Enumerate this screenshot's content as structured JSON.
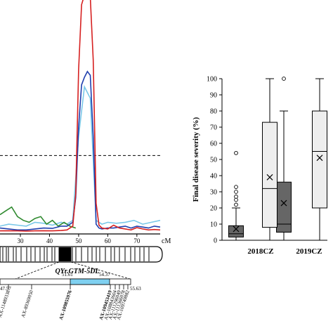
{
  "chart_data": [
    {
      "type": "line",
      "panel": "qtl-lod-profile",
      "x_tick_labels": [
        "30",
        "40",
        "50",
        "60",
        "70"
      ],
      "x_unit": "cM",
      "xlim": [
        23,
        78
      ],
      "ylim": [
        0,
        12
      ],
      "threshold": 4.0,
      "grid": false,
      "series": [
        {
          "color": "#d62020",
          "x": [
            23,
            26,
            29,
            32,
            35,
            38,
            41,
            44,
            46,
            48,
            49,
            50,
            51,
            52,
            53,
            54,
            55,
            56,
            57,
            58,
            60,
            62,
            64,
            66,
            68,
            70,
            72,
            74,
            76,
            78
          ],
          "y": [
            0.05,
            0.06,
            0.05,
            0.04,
            0.05,
            0.06,
            0.05,
            0.07,
            0.1,
            0.3,
            2,
            8.5,
            11.9,
            12.4,
            12.5,
            12.3,
            9,
            1.5,
            0.35,
            0.2,
            0.15,
            0.35,
            0.2,
            0.15,
            0.1,
            0.22,
            0.15,
            0.1,
            0.12,
            0.1
          ]
        },
        {
          "color": "#1f3fae",
          "x": [
            23,
            26,
            29,
            32,
            35,
            38,
            41,
            44,
            46,
            48,
            49,
            50,
            51,
            52,
            53,
            54,
            55,
            56,
            57,
            58,
            60,
            62,
            64,
            66,
            68,
            70,
            72,
            74,
            76,
            78
          ],
          "y": [
            0.2,
            0.15,
            0.1,
            0.1,
            0.15,
            0.2,
            0.18,
            0.3,
            0.3,
            0.5,
            1.8,
            5.5,
            7.7,
            8.1,
            8.4,
            8.2,
            5,
            0.4,
            0.2,
            0.15,
            0.2,
            0.2,
            0.25,
            0.3,
            0.2,
            0.3,
            0.25,
            0.2,
            0.3,
            0.25
          ]
        },
        {
          "color": "#2f8a2f",
          "x": [
            23,
            25,
            27,
            29,
            31,
            33,
            35,
            37,
            39,
            41,
            43,
            45,
            47,
            49
          ],
          "y": [
            0.9,
            1.1,
            1.3,
            0.8,
            0.6,
            0.5,
            0.7,
            0.8,
            0.4,
            0.6,
            0.3,
            0.5,
            0.3,
            0.2
          ]
        },
        {
          "color": "#7ac8e8",
          "x": [
            23,
            26,
            29,
            32,
            35,
            38,
            41,
            44,
            46,
            48,
            50,
            52,
            54,
            56,
            58,
            60,
            63,
            66,
            69,
            72,
            75,
            78
          ],
          "y": [
            0.3,
            0.4,
            0.35,
            0.3,
            0.5,
            0.45,
            0.35,
            0.5,
            0.4,
            0.6,
            5,
            7.6,
            7,
            0.6,
            0.4,
            0.5,
            0.45,
            0.5,
            0.6,
            0.4,
            0.5,
            0.6
          ]
        }
      ]
    },
    {
      "type": "box",
      "panel": "disease-severity",
      "ylabel": "Final disease severity (%)",
      "ylim": [
        0,
        100
      ],
      "yticks": [
        0,
        10,
        20,
        30,
        40,
        50,
        60,
        70,
        80,
        90,
        100
      ],
      "categories": [
        "2018CZ",
        "2019CZ"
      ],
      "series": [
        {
          "fill": "#666666",
          "boxes": [
            {
              "min": 0,
              "q1": 2,
              "median": 4,
              "q3": 9,
              "max": 20,
              "mean": 7,
              "outliers": [
                22,
                25,
                27,
                30,
                33,
                54
              ]
            },
            {
              "min": 0,
              "q1": 5,
              "median": 10,
              "q3": 36,
              "max": 80,
              "mean": 23,
              "outliers": [
                100
              ]
            }
          ]
        },
        {
          "fill": "#eeeeee",
          "boxes": [
            {
              "min": 0,
              "q1": 8,
              "median": 32,
              "q3": 73,
              "max": 100,
              "mean": 39,
              "outliers": []
            },
            {
              "min": 0,
              "q1": 20,
              "median": 55,
              "q3": 80,
              "max": 100,
              "mean": 51,
              "outliers": []
            }
          ]
        }
      ]
    }
  ],
  "chromosome": {
    "qtl_name": "QYr.GTM-5DL",
    "positions": [
      "47.57",
      "51.61",
      "54.37",
      "55.63"
    ],
    "markers": [
      {
        "label": "AX-11489338",
        "bold": false
      },
      {
        "label": "AX-89369050",
        "bold": false
      },
      {
        "label": "AX-109855976",
        "bold": true
      },
      {
        "label": "AX-109453419",
        "bold": true
      },
      {
        "label": "AX-108843604",
        "bold": false
      },
      {
        "label": "AX-111296049",
        "bold": false
      },
      {
        "label": "AX-111366078",
        "bold": false
      },
      {
        "label": "AX-109749882",
        "bold": false
      }
    ],
    "highlight_color": "#7fd0f0"
  }
}
